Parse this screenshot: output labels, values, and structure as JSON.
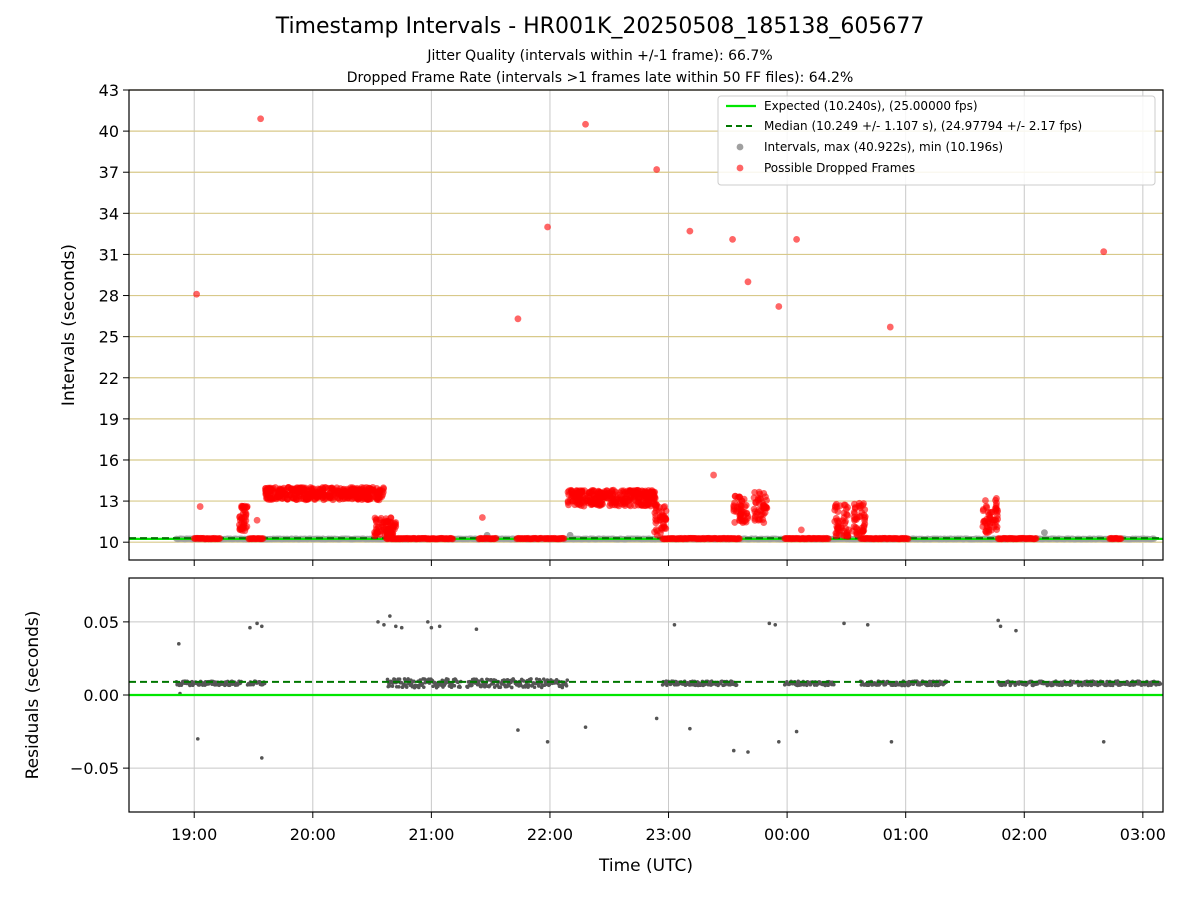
{
  "title": "Timestamp Intervals - HR001K_20250508_185138_605677",
  "subtitle1": "Jitter Quality (intervals within +/-1 frame): 66.7%",
  "subtitle2": "Dropped Frame Rate (intervals >1 frames late within 50 FF files): 64.2%",
  "colors": {
    "expected": "#00e600",
    "median": "#007700",
    "intervals": "#a0a0a0",
    "dropped": "#ff0000",
    "residuals": "#555555",
    "hgrid_top": "#d8c98a",
    "vgrid": "#c8c8c8"
  },
  "chart_data": [
    {
      "type": "scatter",
      "panel": "top",
      "ylabel": "Intervals (seconds)",
      "ylim": [
        8.7,
        43
      ],
      "yticks": [
        "10",
        "13",
        "16",
        "19",
        "22",
        "25",
        "28",
        "31",
        "34",
        "37",
        "40",
        "43"
      ],
      "xlim": [
        18.45,
        27.17
      ],
      "xlabel": "",
      "legend_position": "top-right",
      "legend": [
        "Expected (10.240s), (25.00000 fps)",
        "Median (10.249 +/- 1.107 s), (24.97794 +/- 2.17 fps)",
        "Intervals, max (40.922s), min (10.196s)",
        "Possible Dropped Frames"
      ],
      "expected_line": 10.24,
      "median_line": 10.249,
      "interval_series": {
        "x_start": 18.85,
        "x_end": 27.1,
        "value": 10.24
      },
      "dropped_outliers": [
        {
          "x": 19.02,
          "y": 28.1
        },
        {
          "x": 19.05,
          "y": 12.6
        },
        {
          "x": 19.56,
          "y": 40.9
        },
        {
          "x": 21.73,
          "y": 26.3
        },
        {
          "x": 21.98,
          "y": 33.0
        },
        {
          "x": 22.3,
          "y": 40.5
        },
        {
          "x": 22.9,
          "y": 37.2
        },
        {
          "x": 23.18,
          "y": 32.7
        },
        {
          "x": 23.38,
          "y": 14.9
        },
        {
          "x": 23.54,
          "y": 32.1
        },
        {
          "x": 23.67,
          "y": 29.0
        },
        {
          "x": 23.93,
          "y": 27.2
        },
        {
          "x": 24.08,
          "y": 32.1
        },
        {
          "x": 24.87,
          "y": 25.7
        },
        {
          "x": 26.67,
          "y": 31.2
        },
        {
          "x": 21.43,
          "y": 11.8
        },
        {
          "x": 24.12,
          "y": 10.9
        },
        {
          "x": 19.53,
          "y": 11.6
        }
      ],
      "dropped_clusters": [
        {
          "x_start": 19.38,
          "x_end": 19.45,
          "y_min": 10.8,
          "y_max": 12.7
        },
        {
          "x_start": 19.6,
          "x_end": 20.6,
          "y_min": 12.6,
          "y_max": 14.0
        },
        {
          "x_start": 20.52,
          "x_end": 20.7,
          "y_min": 10.4,
          "y_max": 11.8
        },
        {
          "x_start": 22.15,
          "x_end": 22.9,
          "y_min": 12.0,
          "y_max": 13.8
        },
        {
          "x_start": 22.88,
          "x_end": 22.98,
          "y_min": 10.5,
          "y_max": 12.6
        },
        {
          "x_start": 23.55,
          "x_end": 23.67,
          "y_min": 11.4,
          "y_max": 13.4
        },
        {
          "x_start": 23.72,
          "x_end": 23.83,
          "y_min": 11.2,
          "y_max": 13.7
        },
        {
          "x_start": 24.4,
          "x_end": 24.52,
          "y_min": 10.4,
          "y_max": 12.9
        },
        {
          "x_start": 24.55,
          "x_end": 24.66,
          "y_min": 10.4,
          "y_max": 12.9
        },
        {
          "x_start": 25.65,
          "x_end": 25.78,
          "y_min": 10.6,
          "y_max": 13.2
        }
      ],
      "dropped_baseline": [
        [
          19.0,
          19.22
        ],
        [
          19.46,
          19.58
        ],
        [
          20.62,
          21.18
        ],
        [
          21.4,
          21.55
        ],
        [
          21.72,
          21.93
        ],
        [
          21.95,
          22.12
        ],
        [
          22.95,
          23.6
        ],
        [
          23.98,
          24.35
        ],
        [
          24.62,
          25.02
        ],
        [
          25.78,
          26.1
        ],
        [
          26.72,
          26.82
        ]
      ]
    },
    {
      "type": "scatter",
      "panel": "bottom",
      "ylabel": "Residuals (seconds)",
      "xlabel": "Time (UTC)",
      "ylim": [
        -0.08,
        0.08
      ],
      "yticks": [
        "0.05",
        "0.00",
        "−0.05"
      ],
      "ytick_values": [
        0.05,
        0.0,
        -0.05
      ],
      "xlim": [
        18.45,
        27.17
      ],
      "xticks": [
        "19:00",
        "20:00",
        "21:00",
        "22:00",
        "23:00",
        "00:00",
        "01:00",
        "02:00",
        "03:00"
      ],
      "xtick_values": [
        19,
        20,
        21,
        22,
        23,
        24,
        25,
        26,
        27
      ],
      "expected_line": 0.0,
      "median_line": 0.009,
      "residual_segments": [
        [
          18.85,
          19.4,
          0.008
        ],
        [
          19.45,
          19.6,
          0.008
        ],
        [
          20.63,
          21.25,
          0.008
        ],
        [
          21.3,
          22.15,
          0.008
        ],
        [
          22.95,
          23.58,
          0.008
        ],
        [
          23.98,
          24.4,
          0.008
        ],
        [
          24.62,
          25.35,
          0.008
        ],
        [
          25.78,
          27.15,
          0.008
        ]
      ],
      "residual_outliers": [
        {
          "x": 18.87,
          "y": 0.035
        },
        {
          "x": 18.88,
          "y": 0.001
        },
        {
          "x": 19.03,
          "y": -0.03
        },
        {
          "x": 19.47,
          "y": 0.046
        },
        {
          "x": 19.53,
          "y": 0.049
        },
        {
          "x": 19.57,
          "y": 0.047
        },
        {
          "x": 19.57,
          "y": -0.043
        },
        {
          "x": 20.55,
          "y": 0.05
        },
        {
          "x": 20.6,
          "y": 0.048
        },
        {
          "x": 20.65,
          "y": 0.054
        },
        {
          "x": 20.7,
          "y": 0.047
        },
        {
          "x": 20.75,
          "y": 0.046
        },
        {
          "x": 20.97,
          "y": 0.05
        },
        {
          "x": 21.0,
          "y": 0.046
        },
        {
          "x": 21.07,
          "y": 0.047
        },
        {
          "x": 21.38,
          "y": 0.045
        },
        {
          "x": 21.73,
          "y": -0.024
        },
        {
          "x": 21.98,
          "y": -0.032
        },
        {
          "x": 22.3,
          "y": -0.022
        },
        {
          "x": 22.9,
          "y": -0.016
        },
        {
          "x": 23.05,
          "y": 0.048
        },
        {
          "x": 23.18,
          "y": -0.023
        },
        {
          "x": 23.55,
          "y": -0.038
        },
        {
          "x": 23.67,
          "y": -0.039
        },
        {
          "x": 23.85,
          "y": 0.049
        },
        {
          "x": 23.9,
          "y": 0.048
        },
        {
          "x": 23.93,
          "y": -0.032
        },
        {
          "x": 24.08,
          "y": -0.025
        },
        {
          "x": 24.48,
          "y": 0.049
        },
        {
          "x": 24.68,
          "y": 0.048
        },
        {
          "x": 24.88,
          "y": -0.032
        },
        {
          "x": 25.78,
          "y": 0.051
        },
        {
          "x": 25.8,
          "y": 0.047
        },
        {
          "x": 25.93,
          "y": 0.044
        },
        {
          "x": 26.67,
          "y": -0.032
        }
      ]
    }
  ]
}
